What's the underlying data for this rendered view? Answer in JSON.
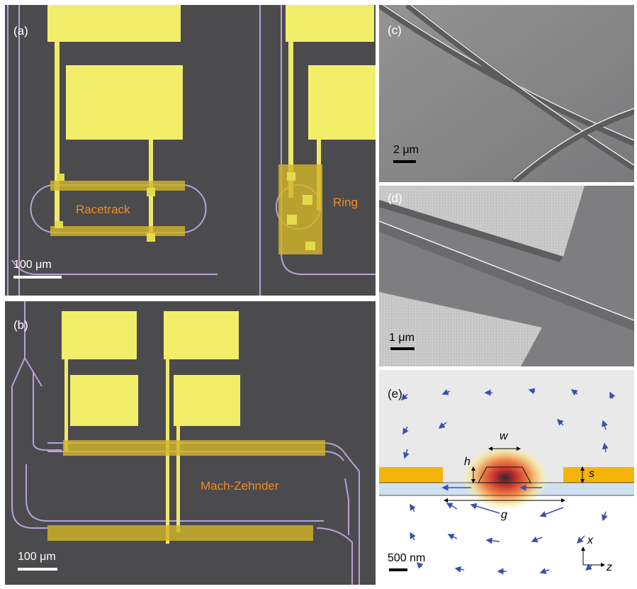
{
  "figure": {
    "panels": {
      "a": {
        "label": "(a)",
        "racetrack_label": "Racetrack",
        "ring_label": "Ring",
        "scalebar": "100 μm"
      },
      "b": {
        "label": "(b)",
        "mz_label": "Mach-Zehnder",
        "scalebar": "100 μm"
      },
      "c": {
        "label": "(c)",
        "scalebar": "2 μm"
      },
      "d": {
        "label": "(d)",
        "scalebar": "1 μm"
      },
      "e": {
        "label": "(e)",
        "dims": {
          "w": "w",
          "h": "h",
          "s": "s",
          "g": "g"
        },
        "axes": {
          "x": "x",
          "z": "z"
        },
        "scalebar": "500 nm"
      }
    },
    "colors": {
      "gold_pad": "#f2ee6a",
      "waveguide": "#b9a0d8",
      "sem_background": "#4b4b4d",
      "label_orange": "#f08a24",
      "arrow_blue": "#3a4fb0"
    }
  }
}
